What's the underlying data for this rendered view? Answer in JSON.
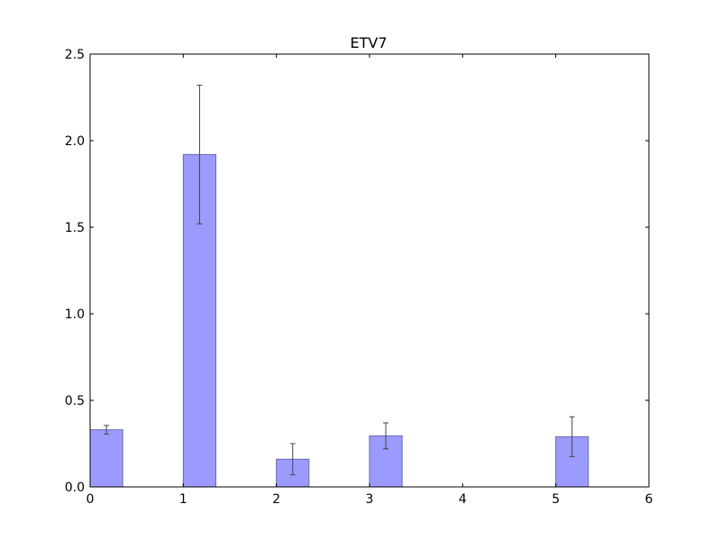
{
  "chart_data": {
    "type": "bar",
    "title": "ETV7",
    "xlabel": "",
    "ylabel": "",
    "xlim": [
      0,
      6
    ],
    "ylim": [
      0,
      2.5
    ],
    "xticks": [
      0,
      1,
      2,
      3,
      4,
      5,
      6
    ],
    "yticks": [
      0.0,
      0.5,
      1.0,
      1.5,
      2.0,
      2.5
    ],
    "xtick_labels": [
      "0",
      "1",
      "2",
      "3",
      "4",
      "5",
      "6"
    ],
    "ytick_labels": [
      "0.0",
      "0.5",
      "1.0",
      "1.5",
      "2.0",
      "2.5"
    ],
    "bar_width": 0.35,
    "bars": [
      {
        "x": 0,
        "value": 0.33,
        "error": 0.025
      },
      {
        "x": 1,
        "value": 1.92,
        "error": 0.4
      },
      {
        "x": 2,
        "value": 0.16,
        "error": 0.09
      },
      {
        "x": 3,
        "value": 0.295,
        "error": 0.075
      },
      {
        "x": 4,
        "value": 0.0,
        "error": 0.0
      },
      {
        "x": 5,
        "value": 0.29,
        "error": 0.115
      }
    ],
    "grid": false,
    "bar_color": "#9b9bff",
    "bar_edge_color": "#6a6ab0",
    "errorbar_color": "#444444"
  }
}
